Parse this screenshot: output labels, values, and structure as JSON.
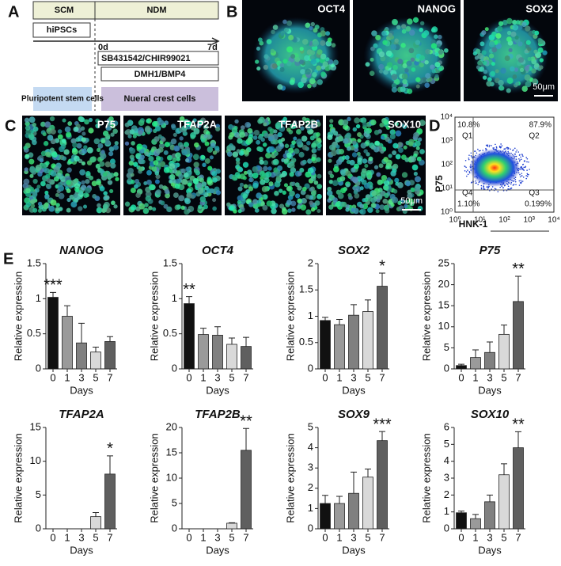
{
  "panel_labels": [
    "A",
    "B",
    "C",
    "D",
    "E"
  ],
  "schematic": {
    "phases": [
      "SCM",
      "NDM"
    ],
    "start_cell": "hiPSCs",
    "day_start": "0d",
    "day_end": "7d",
    "treatments": [
      "SB431542/CHIR99021",
      "DMH1/BMP4"
    ],
    "states": [
      "Pluripotent stem cells",
      "Nueral crest cells"
    ]
  },
  "images_b": {
    "labels": [
      "OCT4",
      "NANOG",
      "SOX2"
    ],
    "scale_bar": "50μm"
  },
  "images_c": {
    "labels": [
      "P75",
      "TFAP2A",
      "TFAP2B",
      "SOX10"
    ],
    "scale_bar": "50μm"
  },
  "flow": {
    "y_label": "P75",
    "x_label": "HNK-1",
    "ticks": [
      "10⁰",
      "10¹",
      "10²",
      "10³",
      "10⁴"
    ],
    "quadrants": [
      {
        "name": "Q1",
        "pct": "10.8%"
      },
      {
        "name": "Q2",
        "pct": "87.9%"
      },
      {
        "name": "Q4",
        "pct": "1.10%"
      },
      {
        "name": "Q3",
        "pct": "0.199%"
      }
    ]
  },
  "chart_data": [
    {
      "type": "bar",
      "title": "NANOG",
      "ylabel": "Relative expression",
      "xlabel": "Days",
      "categories": [
        "0",
        "1",
        "3",
        "5",
        "7"
      ],
      "values": [
        1.02,
        0.75,
        0.37,
        0.24,
        0.39
      ],
      "errors": [
        0.07,
        0.15,
        0.28,
        0.07,
        0.07
      ],
      "colors": [
        "#111111",
        "#9a9a9a",
        "#808080",
        "#d9d9d9",
        "#5f5f5f"
      ],
      "ylim": [
        0,
        1.5
      ],
      "yticks": [
        0,
        0.5,
        1,
        1.5
      ],
      "annotation": "***"
    },
    {
      "type": "bar",
      "title": "OCT4",
      "ylabel": "Relative expression",
      "xlabel": "Days",
      "categories": [
        "0",
        "1",
        "3",
        "5",
        "7"
      ],
      "values": [
        0.93,
        0.49,
        0.48,
        0.35,
        0.32
      ],
      "errors": [
        0.1,
        0.09,
        0.12,
        0.09,
        0.13
      ],
      "colors": [
        "#111111",
        "#9a9a9a",
        "#808080",
        "#d9d9d9",
        "#5f5f5f"
      ],
      "ylim": [
        0,
        1.5
      ],
      "yticks": [
        0,
        0.5,
        1,
        1.5
      ],
      "annotation": "**"
    },
    {
      "type": "bar",
      "title": "SOX2",
      "ylabel": "Relative expression",
      "xlabel": "Days",
      "categories": [
        "0",
        "1",
        "3",
        "5",
        "7"
      ],
      "values": [
        0.92,
        0.84,
        1.02,
        1.09,
        1.57
      ],
      "errors": [
        0.06,
        0.1,
        0.2,
        0.22,
        0.25
      ],
      "colors": [
        "#111111",
        "#9a9a9a",
        "#808080",
        "#d9d9d9",
        "#5f5f5f"
      ],
      "ylim": [
        0,
        2
      ],
      "yticks": [
        0,
        0.5,
        1,
        1.5,
        2
      ],
      "annotation": "*"
    },
    {
      "type": "bar",
      "title": "P75",
      "ylabel": "Relative expression",
      "xlabel": "Days",
      "categories": [
        "0",
        "1",
        "3",
        "5",
        "7"
      ],
      "values": [
        0.8,
        2.7,
        3.9,
        8.2,
        16
      ],
      "errors": [
        0.3,
        1.8,
        2.5,
        2.2,
        6
      ],
      "colors": [
        "#111111",
        "#9a9a9a",
        "#808080",
        "#d9d9d9",
        "#5f5f5f"
      ],
      "ylim": [
        0,
        25
      ],
      "yticks": [
        0,
        5,
        10,
        15,
        20,
        25
      ],
      "annotation": "**"
    },
    {
      "type": "bar",
      "title": "TFAP2A",
      "ylabel": "Relative expression",
      "xlabel": "Days",
      "categories": [
        "0",
        "1",
        "3",
        "5",
        "7"
      ],
      "values": [
        0,
        0,
        0,
        1.8,
        8.1
      ],
      "errors": [
        0,
        0,
        0,
        0.6,
        2.7
      ],
      "colors": [
        "#111111",
        "#9a9a9a",
        "#808080",
        "#d9d9d9",
        "#5f5f5f"
      ],
      "ylim": [
        0,
        15
      ],
      "yticks": [
        0,
        5,
        10,
        15
      ],
      "annotation": "*"
    },
    {
      "type": "bar",
      "title": "TFAP2B",
      "ylabel": "Relative expression",
      "xlabel": "Days",
      "categories": [
        "0",
        "1",
        "3",
        "5",
        "7"
      ],
      "values": [
        0,
        0,
        0,
        1.1,
        15.5
      ],
      "errors": [
        0,
        0,
        0,
        0.1,
        4.3
      ],
      "colors": [
        "#111111",
        "#9a9a9a",
        "#808080",
        "#d9d9d9",
        "#5f5f5f"
      ],
      "ylim": [
        0,
        20
      ],
      "yticks": [
        0,
        5,
        10,
        15,
        20
      ],
      "annotation": "**"
    },
    {
      "type": "bar",
      "title": "SOX9",
      "ylabel": "Relative expression",
      "xlabel": "Days",
      "categories": [
        "0",
        "1",
        "3",
        "5",
        "7"
      ],
      "values": [
        1.25,
        1.25,
        1.75,
        2.55,
        4.35
      ],
      "errors": [
        0.4,
        0.35,
        1.05,
        0.4,
        0.45
      ],
      "colors": [
        "#111111",
        "#9a9a9a",
        "#808080",
        "#d9d9d9",
        "#5f5f5f"
      ],
      "ylim": [
        0,
        5
      ],
      "yticks": [
        0,
        1,
        2,
        3,
        4,
        5
      ],
      "annotation": "***"
    },
    {
      "type": "bar",
      "title": "SOX10",
      "ylabel": "Relative expression",
      "xlabel": "Days",
      "categories": [
        "0",
        "1",
        "3",
        "5",
        "7"
      ],
      "values": [
        0.95,
        0.6,
        1.6,
        3.2,
        4.8
      ],
      "errors": [
        0.1,
        0.25,
        0.4,
        0.65,
        0.95
      ],
      "colors": [
        "#111111",
        "#9a9a9a",
        "#808080",
        "#d9d9d9",
        "#5f5f5f"
      ],
      "ylim": [
        0,
        6
      ],
      "yticks": [
        0,
        1,
        2,
        3,
        4,
        5,
        6
      ],
      "annotation": "**"
    }
  ]
}
